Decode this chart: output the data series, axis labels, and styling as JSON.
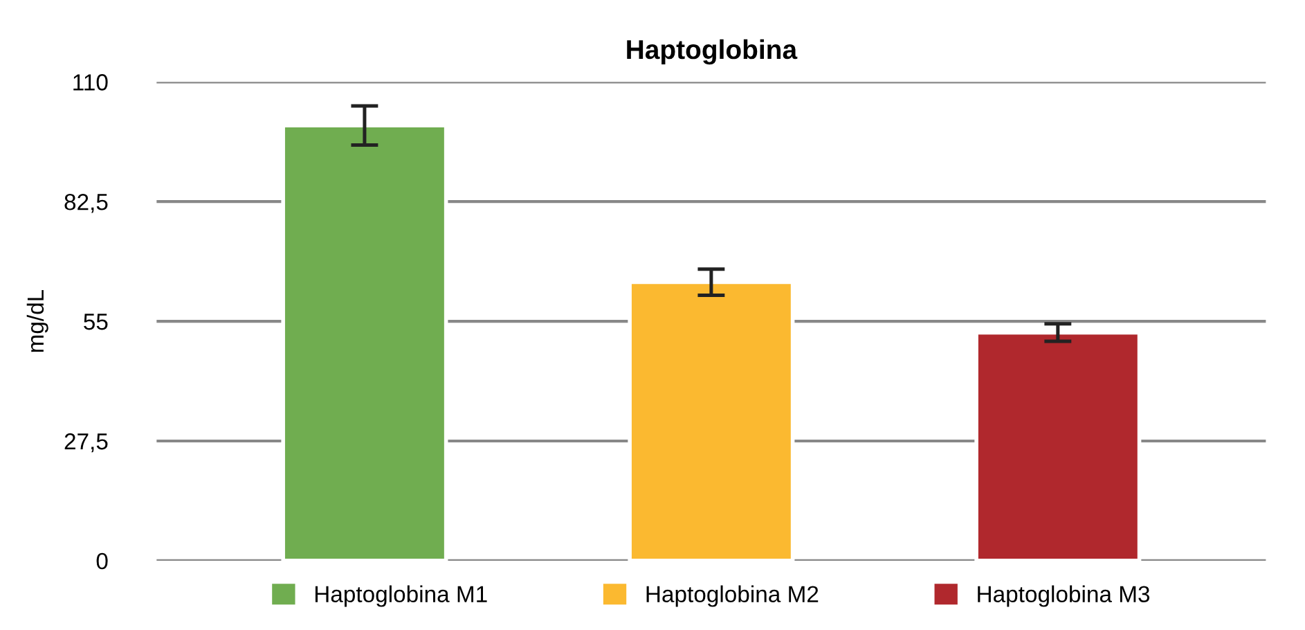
{
  "chart_data": {
    "type": "bar",
    "title": "Haptoglobina",
    "ylabel": "mg/dL",
    "categories": [
      null,
      null,
      null
    ],
    "series": [
      {
        "name": "Haptoglobina M1",
        "color": "#70ad50",
        "values": [
          100,
          null,
          null
        ],
        "errors": [
          4.5,
          null,
          null
        ]
      },
      {
        "name": "Haptoglobina M2",
        "color": "#fbb930",
        "values": [
          null,
          64,
          null
        ],
        "errors": [
          null,
          3,
          null
        ]
      },
      {
        "name": "Haptoglobina M3",
        "color": "#b0282d",
        "values": [
          null,
          null,
          52.4
        ],
        "errors": [
          null,
          null,
          2
        ]
      }
    ],
    "ylim": [
      0,
      110
    ],
    "yticks": [
      0,
      {
        "value": 27.5,
        "label": "27,5"
      },
      55,
      {
        "value": 82.5,
        "label": "82,5"
      },
      110
    ],
    "grid": "y",
    "legend": "bottom"
  }
}
